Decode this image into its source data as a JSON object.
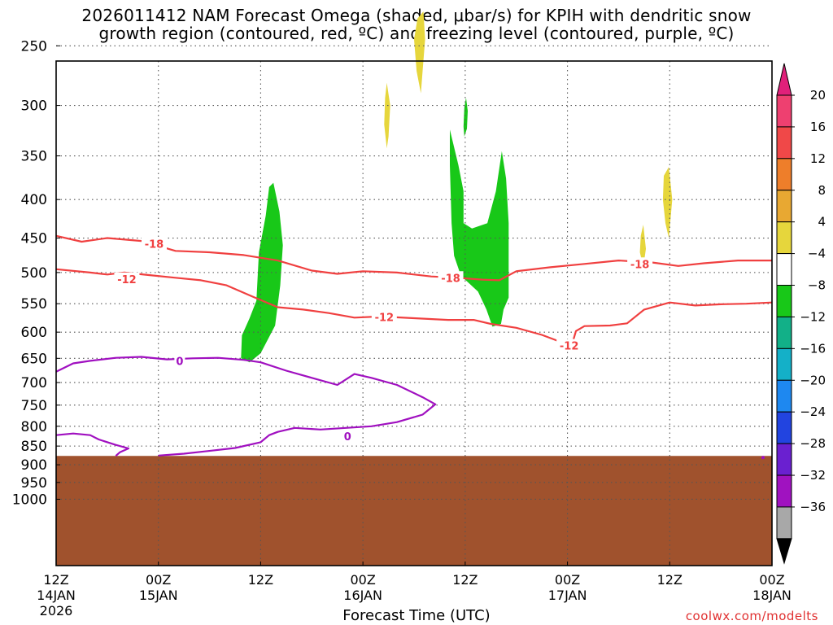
{
  "title_line1": "2026011412 NAM Forecast Omega (shaded, μbar/s) for KPIH with dendritic snow",
  "title_line2": "growth region (contoured, red, ºC) and freezing level (contoured, purple, ºC)",
  "x_axis_label": "Forecast Time (UTC)",
  "credit": "coolwx.com/modelts",
  "chart_data": {
    "type": "heatmap",
    "x_ticks": [
      {
        "hours": 0,
        "lines": [
          "12Z",
          "14JAN",
          "2026"
        ]
      },
      {
        "hours": 12,
        "lines": [
          "00Z",
          "15JAN"
        ]
      },
      {
        "hours": 24,
        "lines": [
          "12Z"
        ]
      },
      {
        "hours": 36,
        "lines": [
          "00Z",
          "16JAN"
        ]
      },
      {
        "hours": 48,
        "lines": [
          "12Z"
        ]
      },
      {
        "hours": 60,
        "lines": [
          "00Z",
          "17JAN"
        ]
      },
      {
        "hours": 72,
        "lines": [
          "12Z"
        ]
      },
      {
        "hours": 84,
        "lines": [
          "00Z",
          "18JAN"
        ]
      }
    ],
    "x_range_hours": [
      0,
      84
    ],
    "y_ticks_hPa": [
      250,
      300,
      350,
      400,
      450,
      500,
      550,
      600,
      650,
      700,
      750,
      800,
      850,
      900,
      950,
      1000
    ],
    "y_scale": "log-pressure",
    "grid": true,
    "colorbar": {
      "labels": [
        "20",
        "16",
        "12",
        "8",
        "4",
        "−4",
        "−8",
        "−12",
        "−16",
        "−20",
        "−24",
        "−28",
        "−32",
        "−36"
      ],
      "colors": [
        "#ee4070",
        "#f04848",
        "#ee7e2a",
        "#e8a832",
        "#e6d63c",
        "#ffffff",
        "#18c818",
        "#12b088",
        "#14b0c8",
        "#1e88f0",
        "#2244e0",
        "#6a20d0",
        "#a012c0",
        "#a8a8a8"
      ],
      "top_arrow_color": "#e0207a",
      "bottom_arrow_color": "#000000"
    },
    "contour_labels": [
      {
        "text": "-18",
        "color": "#f04040",
        "t": 11.5,
        "p": 458
      },
      {
        "text": "-12",
        "color": "#f04040",
        "t": 8.3,
        "p": 510
      },
      {
        "text": "-18",
        "color": "#f04040",
        "t": 46.3,
        "p": 508
      },
      {
        "text": "-12",
        "color": "#f04040",
        "t": 38.5,
        "p": 573
      },
      {
        "text": "-12",
        "color": "#f04040",
        "t": 60.2,
        "p": 625
      },
      {
        "text": "-18",
        "color": "#f04040",
        "t": 68.5,
        "p": 487
      },
      {
        "text": "0",
        "color": "#a010c0",
        "t": 14.5,
        "p": 655
      },
      {
        "text": "0",
        "color": "#a010c0",
        "t": 34.2,
        "p": 825
      }
    ],
    "series": [
      {
        "name": "-18",
        "color": "#f04040",
        "points": [
          [
            0,
            447
          ],
          [
            3,
            455
          ],
          [
            6,
            450
          ],
          [
            10,
            454
          ],
          [
            14,
            468
          ],
          [
            18,
            470
          ],
          [
            22,
            474
          ],
          [
            26,
            482
          ],
          [
            30,
            497
          ],
          [
            33,
            502
          ],
          [
            36,
            498
          ],
          [
            40,
            500
          ],
          [
            44,
            506
          ],
          [
            47,
            508
          ],
          [
            50,
            511
          ],
          [
            52,
            512
          ],
          [
            54,
            498
          ],
          [
            58,
            492
          ],
          [
            62,
            487
          ],
          [
            66,
            482
          ],
          [
            70,
            485
          ],
          [
            73,
            490
          ],
          [
            76,
            486
          ],
          [
            80,
            482
          ],
          [
            84,
            482
          ]
        ]
      },
      {
        "name": "-12",
        "color": "#f04040",
        "points": [
          [
            0,
            495
          ],
          [
            4,
            500
          ],
          [
            6,
            503
          ],
          [
            8,
            500
          ],
          [
            11,
            504
          ],
          [
            14,
            508
          ],
          [
            17,
            512
          ],
          [
            20,
            520
          ],
          [
            23,
            538
          ],
          [
            26,
            556
          ],
          [
            29,
            560
          ],
          [
            32,
            566
          ],
          [
            35,
            574
          ],
          [
            38,
            572
          ],
          [
            42,
            575
          ],
          [
            46,
            578
          ],
          [
            49,
            578
          ],
          [
            51,
            585
          ],
          [
            54,
            592
          ],
          [
            57,
            605
          ],
          [
            59,
            617
          ],
          [
            60.5,
            625
          ],
          [
            61,
            598
          ],
          [
            62,
            589
          ],
          [
            65,
            588
          ],
          [
            67,
            584
          ],
          [
            69,
            560
          ],
          [
            72,
            548
          ],
          [
            75,
            553
          ],
          [
            78,
            551
          ],
          [
            81,
            550
          ],
          [
            84,
            548
          ]
        ]
      },
      {
        "name": "0",
        "color": "#a010c0",
        "points": [
          [
            0,
            677
          ],
          [
            2,
            660
          ],
          [
            4,
            655
          ],
          [
            7,
            649
          ],
          [
            10,
            647
          ],
          [
            13,
            652
          ],
          [
            16,
            650
          ],
          [
            19,
            649
          ],
          [
            22,
            653
          ],
          [
            24,
            658
          ],
          [
            27,
            675
          ],
          [
            30,
            690
          ],
          [
            33,
            705
          ],
          [
            35,
            682
          ],
          [
            37,
            690
          ],
          [
            40,
            705
          ],
          [
            43,
            732
          ],
          [
            44.5,
            748
          ],
          [
            43,
            772
          ],
          [
            40,
            790
          ],
          [
            37,
            800
          ],
          [
            34,
            804
          ],
          [
            31,
            808
          ],
          [
            28,
            804
          ],
          [
            26,
            814
          ],
          [
            25,
            822
          ],
          [
            24,
            840
          ],
          [
            21,
            855
          ],
          [
            17,
            865
          ],
          [
            15,
            870
          ],
          [
            12,
            875
          ]
        ]
      },
      {
        "name": "0",
        "color": "#a010c0",
        "points": [
          [
            0,
            822
          ],
          [
            2,
            818
          ],
          [
            4,
            822
          ],
          [
            5,
            833
          ],
          [
            7,
            847
          ],
          [
            8.5,
            856
          ],
          [
            7.5,
            866
          ],
          [
            7,
            876
          ]
        ]
      }
    ],
    "shaded_regions": [
      {
        "value_range": [
          -8,
          -4
        ],
        "color": "#18c818",
        "points": [
          [
            25.5,
            380
          ],
          [
            26.2,
            415
          ],
          [
            26.6,
            460
          ],
          [
            26.3,
            520
          ],
          [
            25.7,
            588
          ],
          [
            24,
            640
          ],
          [
            22.7,
            658
          ],
          [
            21.7,
            650
          ],
          [
            21.8,
            606
          ],
          [
            22.7,
            575
          ],
          [
            23.5,
            545
          ],
          [
            23.8,
            470
          ],
          [
            24.6,
            420
          ],
          [
            25,
            385
          ]
        ]
      },
      {
        "value_range": [
          -8,
          -4
        ],
        "color": "#18c818",
        "points": [
          [
            46.2,
            323
          ],
          [
            47.2,
            360
          ],
          [
            47.8,
            390
          ],
          [
            47.8,
            430
          ],
          [
            48.8,
            437
          ],
          [
            50.6,
            430
          ],
          [
            51.6,
            390
          ],
          [
            52.3,
            345
          ],
          [
            52.8,
            375
          ],
          [
            53.1,
            430
          ],
          [
            53.1,
            540
          ],
          [
            52.5,
            560
          ],
          [
            52.2,
            585
          ],
          [
            51.2,
            590
          ],
          [
            50.5,
            560
          ],
          [
            49.5,
            530
          ],
          [
            47.5,
            505
          ],
          [
            46.7,
            475
          ],
          [
            46.4,
            430
          ],
          [
            46.2,
            360
          ]
        ]
      },
      {
        "value_range": [
          -8,
          -4
        ],
        "color": "#18c818",
        "points": [
          [
            48.1,
            293
          ],
          [
            48.3,
            305
          ],
          [
            48.2,
            322
          ],
          [
            47.9,
            330
          ],
          [
            47.8,
            320
          ],
          [
            47.9,
            302
          ]
        ]
      },
      {
        "value_range": [
          4,
          8
        ],
        "color": "#e6d63c",
        "points": [
          [
            42.4,
            230
          ],
          [
            43.1,
            225
          ],
          [
            43.3,
            245
          ],
          [
            43,
            270
          ],
          [
            42.8,
            289
          ],
          [
            42.3,
            270
          ],
          [
            42,
            245
          ]
        ]
      },
      {
        "value_range": [
          4,
          8
        ],
        "color": "#e6d63c",
        "points": [
          [
            38.8,
            280
          ],
          [
            39.2,
            300
          ],
          [
            39,
            330
          ],
          [
            38.8,
            342
          ],
          [
            38.5,
            318
          ],
          [
            38.6,
            293
          ]
        ]
      },
      {
        "value_range": [
          4,
          8
        ],
        "color": "#e6d63c",
        "points": [
          [
            71.3,
            372
          ],
          [
            71.9,
            362
          ],
          [
            72.3,
            400
          ],
          [
            71.9,
            450
          ],
          [
            71.5,
            430
          ],
          [
            71.2,
            400
          ]
        ]
      },
      {
        "value_range": [
          4,
          8
        ],
        "color": "#e6d63c",
        "points": [
          [
            68.6,
            447
          ],
          [
            68.9,
            432
          ],
          [
            69.2,
            465
          ],
          [
            68.9,
            492
          ],
          [
            68.5,
            470
          ]
        ]
      }
    ],
    "terrain": {
      "color": "#a0522d",
      "surface_hPa": 876,
      "dot_color": "#a010c0"
    }
  }
}
